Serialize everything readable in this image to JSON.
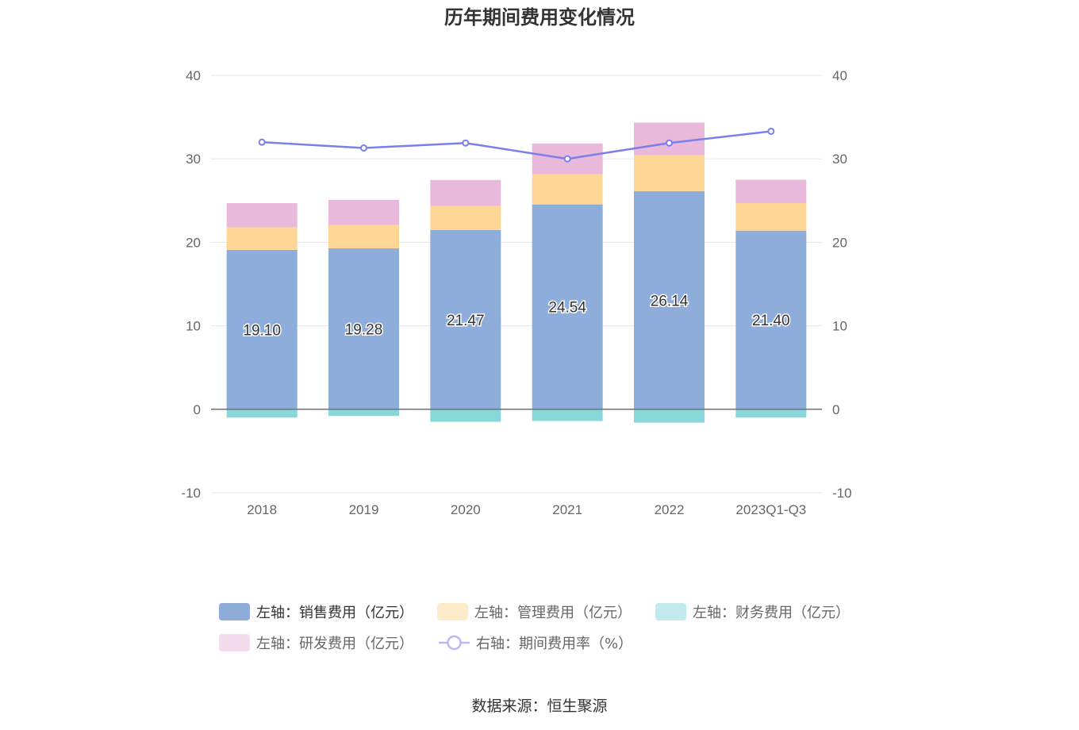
{
  "chart_data": {
    "type": "bar",
    "title": "历年期间费用变化情况",
    "categories": [
      "2018",
      "2019",
      "2020",
      "2021",
      "2022",
      "2023Q1-Q3"
    ],
    "left_axis": {
      "min": -10,
      "max": 40,
      "ticks": [
        -10,
        0,
        10,
        20,
        30,
        40
      ]
    },
    "right_axis": {
      "min": -10,
      "max": 40,
      "ticks": [
        -10,
        0,
        10,
        20,
        30,
        40
      ]
    },
    "grid": true,
    "legend_position": "bottom",
    "series": [
      {
        "name": "左轴：销售费用（亿元）",
        "kind": "bar",
        "axis": "left",
        "color": "#8eadda",
        "values": [
          19.1,
          19.28,
          21.47,
          24.54,
          26.14,
          21.4
        ],
        "labels": [
          "19.10",
          "19.28",
          "21.47",
          "24.54",
          "26.14",
          "21.40"
        ]
      },
      {
        "name": "左轴：管理费用（亿元）",
        "kind": "bar",
        "axis": "left",
        "color": "#fed797",
        "values": [
          2.7,
          2.8,
          2.9,
          3.6,
          4.3,
          3.3
        ]
      },
      {
        "name": "左轴：财务费用（亿元）",
        "kind": "bar",
        "axis": "left",
        "color": "#88d8d9",
        "values": [
          -1.0,
          -0.8,
          -1.5,
          -1.4,
          -1.6,
          -1.0
        ]
      },
      {
        "name": "左轴：研发费用（亿元）",
        "kind": "bar",
        "axis": "left",
        "color": "#e8b9da",
        "values": [
          2.9,
          3.0,
          3.1,
          3.7,
          3.9,
          2.8
        ]
      },
      {
        "name": "右轴：期间费用率（%）",
        "kind": "line",
        "axis": "right",
        "color": "#7b7fe8",
        "values": [
          32.0,
          31.3,
          31.9,
          30.0,
          31.9,
          33.3
        ]
      }
    ]
  },
  "legend": [
    {
      "label": "左轴：销售费用（亿元）",
      "color": "#8eadda",
      "symbol": "bar",
      "active": true
    },
    {
      "label": "左轴：管理费用（亿元）",
      "color": "#feebc9",
      "symbol": "bar",
      "active": false
    },
    {
      "label": "左轴：财务费用（亿元）",
      "color": "#c1eaec",
      "symbol": "bar",
      "active": false
    },
    {
      "label": "左轴：研发费用（亿元）",
      "color": "#f3dced",
      "symbol": "bar",
      "active": false
    },
    {
      "label": "右轴：期间费用率（%）",
      "color": "#b7b9f2",
      "symbol": "line",
      "active": false
    }
  ],
  "source": "数据来源：恒生聚源"
}
